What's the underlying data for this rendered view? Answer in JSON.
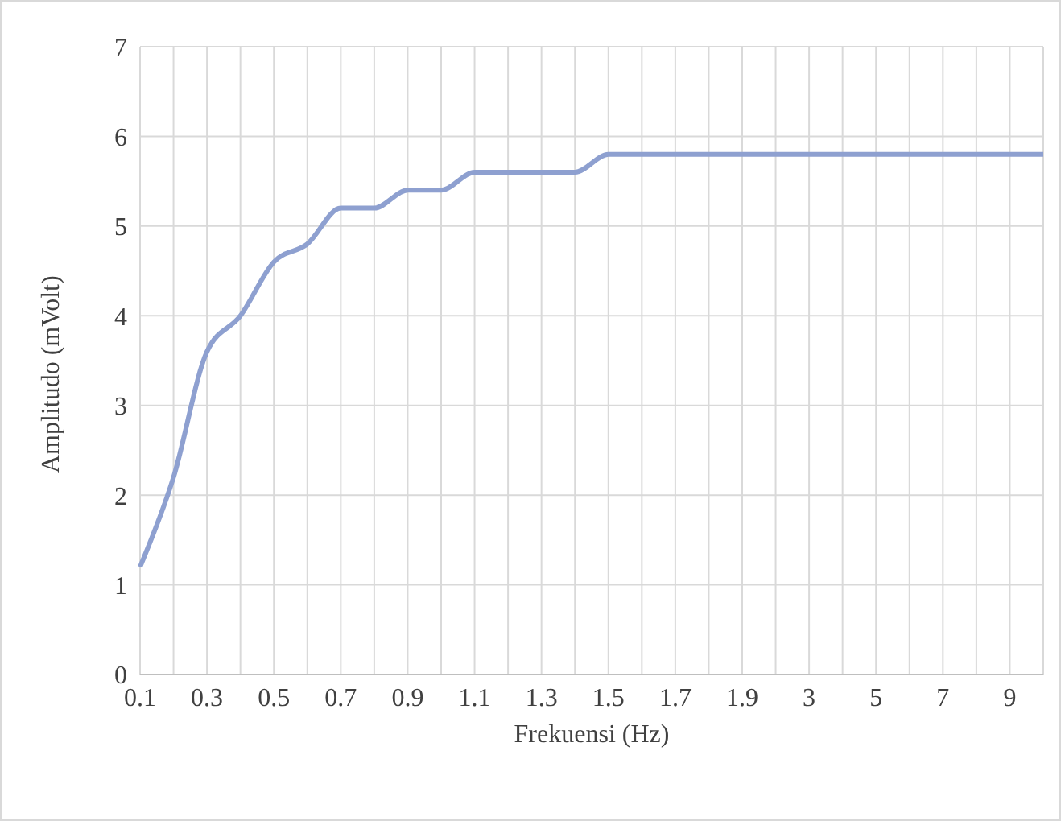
{
  "chart_data": {
    "type": "line",
    "xlabel": "Frekuensi (Hz)",
    "ylabel": "Amplitudo (mVolt)",
    "categories": [
      "0.1",
      null,
      "0.3",
      null,
      "0.5",
      null,
      "0.7",
      null,
      "0.9",
      null,
      "1.1",
      null,
      "1.3",
      null,
      "1.5",
      null,
      "1.7",
      null,
      "1.9",
      null,
      "3",
      null,
      "5",
      null,
      "7",
      null,
      "9",
      null
    ],
    "series": [
      {
        "color": "#8ea0d0",
        "values": [
          1.2,
          2.2,
          3.6,
          4.0,
          4.6,
          4.8,
          5.2,
          5.2,
          5.4,
          5.4,
          5.6,
          5.6,
          5.6,
          5.6,
          5.8,
          5.8,
          5.8,
          5.8,
          5.8,
          5.8,
          5.8,
          5.8,
          5.8,
          5.8,
          5.8,
          5.8,
          5.8,
          5.8
        ]
      }
    ],
    "ylim": [
      0,
      7
    ],
    "yticks": [
      0,
      1,
      2,
      3,
      4,
      5,
      6,
      7
    ],
    "grid": true,
    "legend": false,
    "marker": "none",
    "line_style": "solid"
  }
}
